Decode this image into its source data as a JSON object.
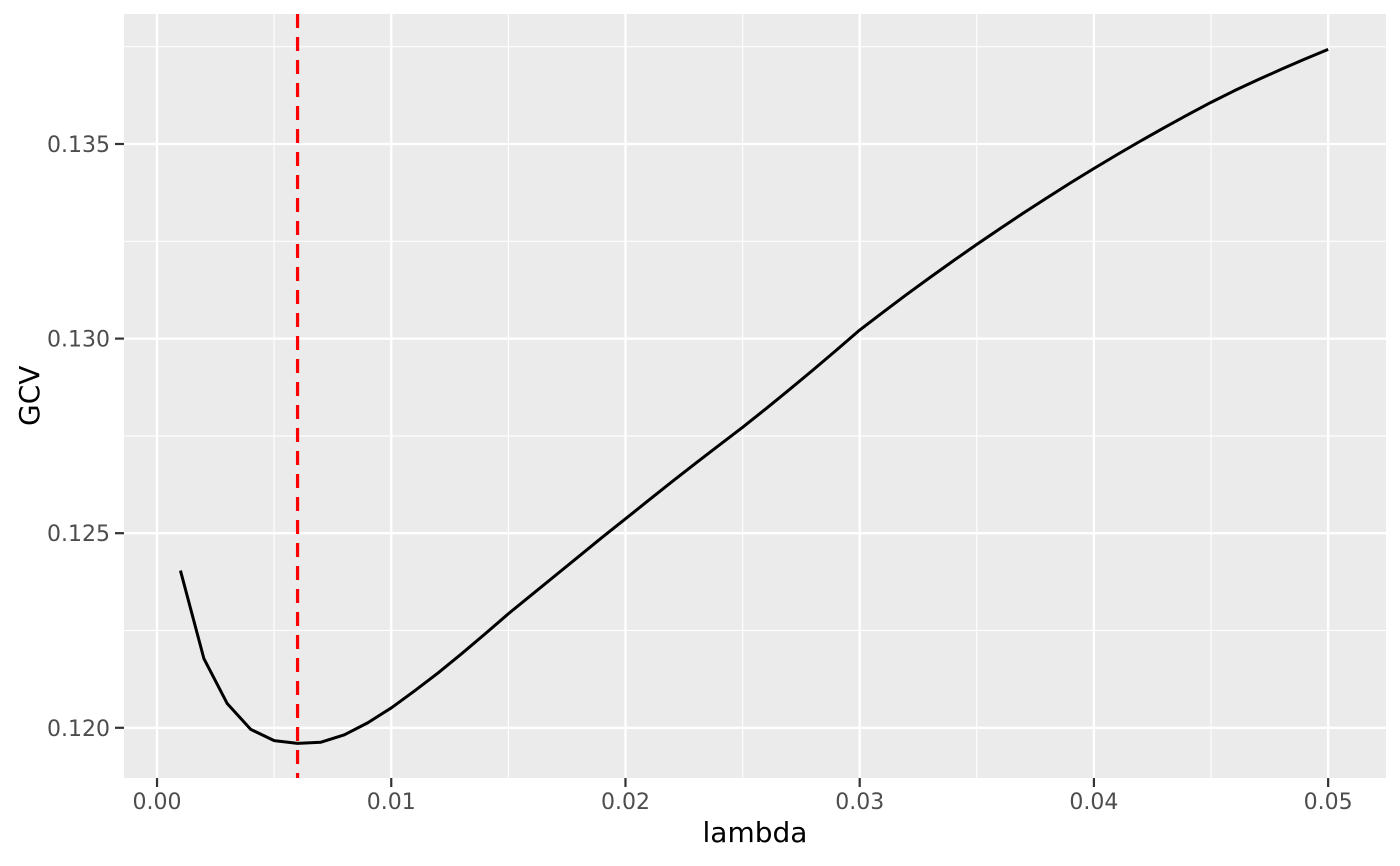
{
  "chart_data": {
    "type": "line",
    "title": "",
    "xlabel": "lambda",
    "ylabel": "GCV",
    "x": [
      0.001,
      0.002,
      0.003,
      0.004,
      0.005,
      0.006,
      0.007,
      0.008,
      0.009,
      0.01,
      0.011,
      0.012,
      0.013,
      0.014,
      0.015,
      0.016,
      0.017,
      0.018,
      0.019,
      0.02,
      0.021,
      0.022,
      0.023,
      0.024,
      0.025,
      0.026,
      0.027,
      0.028,
      0.029,
      0.03,
      0.031,
      0.032,
      0.033,
      0.034,
      0.035,
      0.036,
      0.037,
      0.038,
      0.039,
      0.04,
      0.041,
      0.042,
      0.043,
      0.044,
      0.045,
      0.046,
      0.047,
      0.048,
      0.049,
      0.05
    ],
    "series": [
      {
        "name": "GCV",
        "color": "#000000",
        "values": [
          0.12404,
          0.12178,
          0.12062,
          0.11996,
          0.11967,
          0.1196,
          0.11963,
          0.11982,
          0.12013,
          0.12051,
          0.12095,
          0.12141,
          0.1219,
          0.12241,
          0.12293,
          0.12342,
          0.12391,
          0.1244,
          0.12489,
          0.12537,
          0.12585,
          0.12633,
          0.1268,
          0.12726,
          0.12772,
          0.1282,
          0.12869,
          0.12919,
          0.1297,
          0.13022,
          0.13068,
          0.13113,
          0.13157,
          0.132,
          0.13242,
          0.13283,
          0.13323,
          0.13362,
          0.134,
          0.13437,
          0.13473,
          0.13508,
          0.13542,
          0.13575,
          0.13607,
          0.13637,
          0.13665,
          0.13692,
          0.13718,
          0.13743
        ]
      }
    ],
    "vline": {
      "x": 0.006,
      "color": "#FF0000",
      "style": "dashed"
    },
    "xlim": [
      -0.00141,
      0.05247
    ],
    "ylim": [
      0.11871,
      0.13834
    ],
    "x_ticks": {
      "values": [
        0.0,
        0.01,
        0.02,
        0.03,
        0.04,
        0.05
      ],
      "labels": [
        "0.00",
        "0.01",
        "0.02",
        "0.03",
        "0.04",
        "0.05"
      ],
      "minor": [
        0.005,
        0.015,
        0.025,
        0.035,
        0.045
      ]
    },
    "y_ticks": {
      "values": [
        0.12,
        0.125,
        0.13,
        0.135
      ],
      "labels": [
        "0.120",
        "0.125",
        "0.130",
        "0.135"
      ],
      "minor": [
        0.1225,
        0.1275,
        0.1325,
        0.1375
      ]
    },
    "grid": "on",
    "legend": "none",
    "theme": "ggplot2-grey"
  },
  "style": {
    "panel_background": "#EBEBEB",
    "grid_color": "#FFFFFF",
    "tick_label_color": "#4D4D4D",
    "tick_mark_color": "#333333",
    "curve_color": "#000000",
    "vline_color": "#FF0000",
    "axis_title_color": "#000000"
  }
}
